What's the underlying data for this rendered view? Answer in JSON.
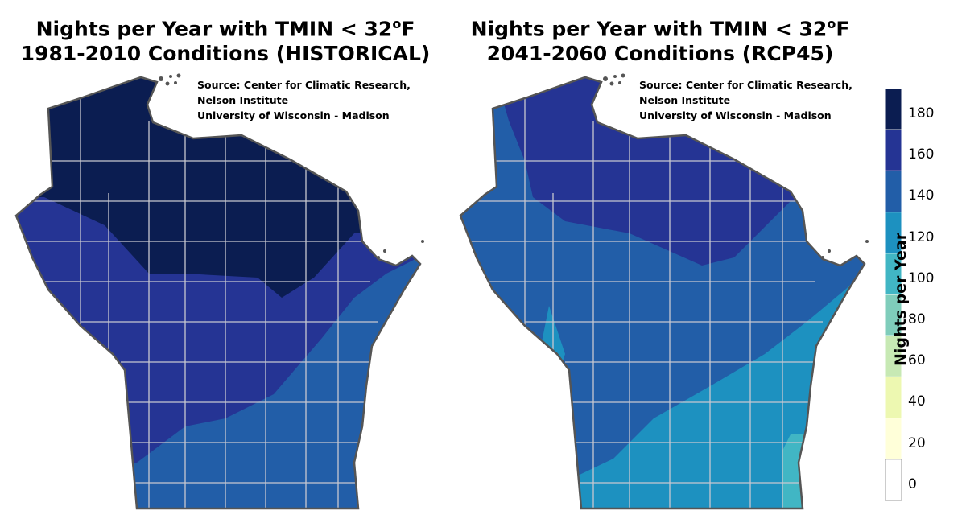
{
  "maps": [
    {
      "title_line1": "Nights per Year with TMIN < 32",
      "degree": "o",
      "unit": "F",
      "title_line2": "1981-2010 Conditions (HISTORICAL)",
      "zones": [
        "180",
        "160",
        "140"
      ]
    },
    {
      "title_line1": "Nights per Year with TMIN < 32",
      "degree": "o",
      "unit": "F",
      "title_line2": "2041-2060 Conditions (RCP45)",
      "zones": [
        "160",
        "140",
        "120",
        "100"
      ]
    }
  ],
  "source": {
    "line1": "Source:  Center for Climatic Research,",
    "line2": "Nelson Institute",
    "line3": "University of Wisconsin - Madison"
  },
  "legend": {
    "title": "Nights per Year",
    "labels": [
      "180",
      "160",
      "140",
      "120",
      "100",
      "80",
      "60",
      "40",
      "20",
      "0"
    ],
    "colors": [
      "#0b1d51",
      "#253494",
      "#225ea8",
      "#1d91c0",
      "#41b6c4",
      "#7fcdbb",
      "#c7e9b4",
      "#edf8b1",
      "#ffffd9",
      "#ffffff"
    ]
  }
}
